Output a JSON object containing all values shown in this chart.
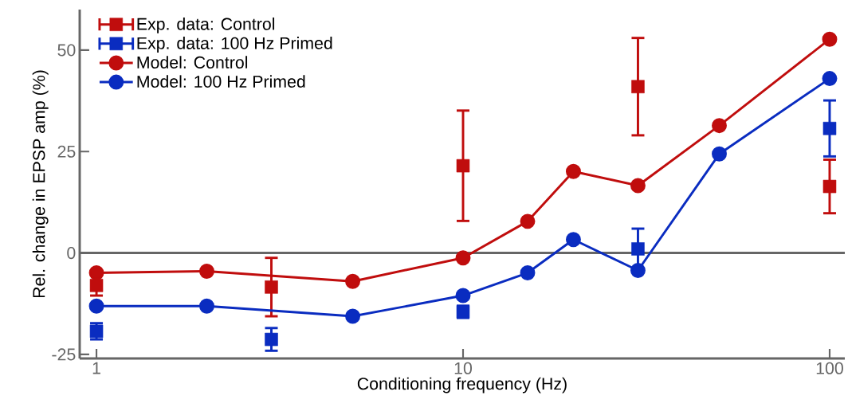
{
  "chart_data": {
    "type": "line",
    "xlabel": "Conditioning frequency (Hz)",
    "ylabel": "Rel. change in EPSP amp (%)",
    "log": "x",
    "xlim": [
      0.9,
      110
    ],
    "xticks": [
      1,
      10,
      100
    ],
    "ylim": [
      -26,
      60
    ],
    "yticks": [
      -25,
      0,
      25,
      50
    ],
    "grid": false,
    "legend": "top left",
    "ref_lines": [
      {
        "axis": "y",
        "value": 0,
        "color": "#666666"
      }
    ],
    "series": [
      {
        "name": "Exp. data: Control",
        "type": "scatter",
        "color": "#c00d0d",
        "marker": "square",
        "x": [
          1,
          3,
          10,
          30,
          100
        ],
        "values": [
          -8,
          -8.4,
          21.5,
          41,
          16.4
        ],
        "errors": [
          2.5,
          7.2,
          13.6,
          12,
          6.6
        ]
      },
      {
        "name": "Exp. data: 100 Hz Primed",
        "type": "scatter",
        "color": "#0a2cc0",
        "marker": "square",
        "x": [
          1,
          3,
          10,
          30,
          100
        ],
        "values": [
          -19.3,
          -21.3,
          -14.5,
          1,
          30.7
        ],
        "errors": [
          2,
          2.8,
          1.5,
          5,
          6.9
        ]
      },
      {
        "name": "Model: Control",
        "color": "#c00d0d",
        "marker": "circle",
        "x": [
          1,
          2,
          5,
          10,
          15,
          20,
          30,
          50,
          100
        ],
        "values": [
          -4.9,
          -4.5,
          -7,
          -1.2,
          7.8,
          20.1,
          16.6,
          31.4,
          52.7
        ]
      },
      {
        "name": "Model: 100 Hz Primed",
        "color": "#0a2cc0",
        "marker": "circle",
        "x": [
          1,
          2,
          5,
          10,
          15,
          20,
          30,
          50,
          100
        ],
        "values": [
          -13.1,
          -13.1,
          -15.6,
          -10.5,
          -4.9,
          3.3,
          -4.3,
          24.4,
          43
        ]
      }
    ]
  }
}
